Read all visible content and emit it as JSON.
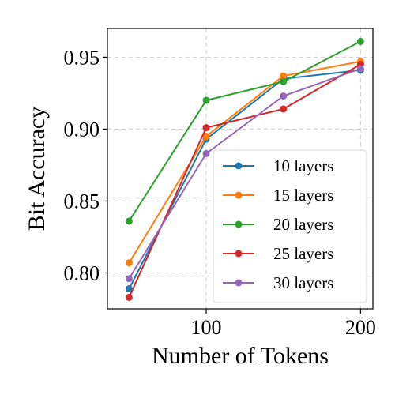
{
  "chart_data": {
    "type": "line",
    "xlabel": "Number of Tokens",
    "ylabel": "Bit Accuracy",
    "x": [
      50,
      100,
      150,
      200
    ],
    "xlim": [
      36,
      208
    ],
    "ylim": [
      0.775,
      0.97
    ],
    "xticks": [
      100,
      200
    ],
    "xtick_labels": [
      "100",
      "200"
    ],
    "yticks": [
      0.8,
      0.85,
      0.9,
      0.95
    ],
    "ytick_labels": [
      "0.80",
      "0.85",
      "0.90",
      "0.95"
    ],
    "grid": true,
    "legend_position": "lower-right",
    "series": [
      {
        "name": "10 layers",
        "color": "#1f77b4",
        "values": [
          0.789,
          0.893,
          0.935,
          0.941
        ]
      },
      {
        "name": "15 layers",
        "color": "#ff7f0e",
        "values": [
          0.807,
          0.895,
          0.937,
          0.947
        ]
      },
      {
        "name": "20 layers",
        "color": "#2ca02c",
        "values": [
          0.836,
          0.92,
          0.933,
          0.961
        ]
      },
      {
        "name": "25 layers",
        "color": "#d62728",
        "values": [
          0.783,
          0.901,
          0.914,
          0.945
        ]
      },
      {
        "name": "30 layers",
        "color": "#9467bd",
        "values": [
          0.796,
          0.883,
          0.923,
          0.942
        ]
      }
    ]
  }
}
